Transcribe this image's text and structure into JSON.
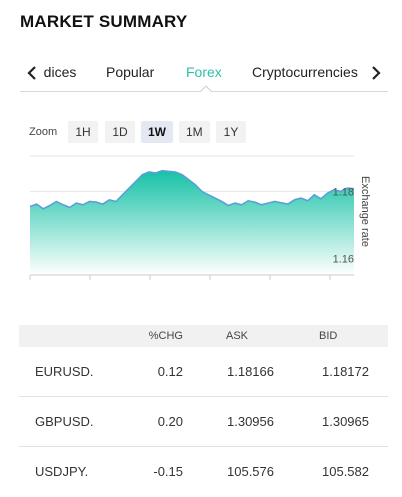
{
  "header": {
    "title": "MARKET SUMMARY"
  },
  "tabs": [
    {
      "label": "Indices"
    },
    {
      "label": "Popular"
    },
    {
      "label": "Forex",
      "active": true
    },
    {
      "label": "Cryptocurrencies"
    }
  ],
  "zoom": {
    "label": "Zoom",
    "options": [
      "1H",
      "1D",
      "1W",
      "1M",
      "1Y"
    ],
    "selected": "1W"
  },
  "colors": {
    "accent": "#2fbfa6",
    "line": "#5aa0d8",
    "area_top": "#1cc3a8",
    "area_bottom": "#ffffff"
  },
  "chart_data": {
    "type": "area",
    "ylabel": "Exchange rate",
    "ylim": [
      1.155,
      1.19
    ],
    "ticks": [
      1.16,
      1.18
    ],
    "grid": true,
    "values": [
      1.1755,
      1.1762,
      1.1748,
      1.1758,
      1.177,
      1.176,
      1.1752,
      1.1765,
      1.176,
      1.177,
      1.1768,
      1.1762,
      1.1775,
      1.177,
      1.179,
      1.181,
      1.183,
      1.185,
      1.1858,
      1.1855,
      1.1862,
      1.186,
      1.1858,
      1.185,
      1.1835,
      1.182,
      1.18,
      1.179,
      1.178,
      1.177,
      1.1758,
      1.1765,
      1.176,
      1.1772,
      1.1768,
      1.176,
      1.1765,
      1.177,
      1.1766,
      1.1762,
      1.1775,
      1.178,
      1.1772,
      1.179,
      1.1778,
      1.1795,
      1.1805,
      1.18,
      1.181,
      1.1808
    ]
  },
  "table": {
    "headers": [
      "",
      "%CHG",
      "ASK",
      "BID"
    ],
    "rows": [
      [
        "EURUSD.",
        "0.12",
        "1.18166",
        "1.18172"
      ],
      [
        "GBPUSD.",
        "0.20",
        "1.30956",
        "1.30965"
      ],
      [
        "USDJPY.",
        "-0.15",
        "105.576",
        "105.582"
      ]
    ]
  }
}
